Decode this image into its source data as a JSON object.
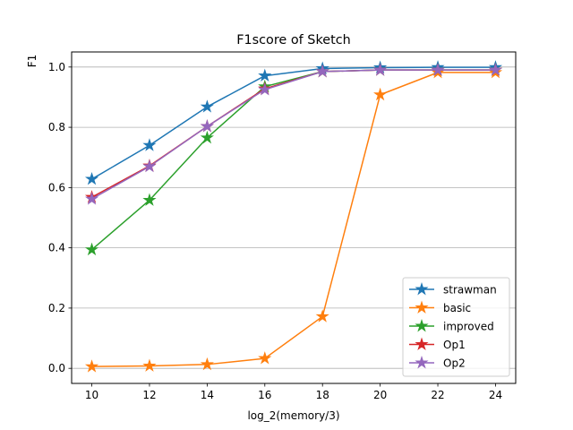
{
  "chart_data": {
    "type": "line",
    "title": "F1score of Sketch",
    "xlabel": "log_2(memory/3)",
    "ylabel": "F1",
    "x": [
      10,
      12,
      14,
      16,
      18,
      20,
      22,
      24
    ],
    "xticks": [
      "10",
      "12",
      "14",
      "16",
      "18",
      "20",
      "22",
      "24"
    ],
    "yticks": [
      "0.0",
      "0.2",
      "0.4",
      "0.6",
      "0.8",
      "1.0"
    ],
    "xlim": [
      9.3,
      24.7
    ],
    "ylim": [
      -0.05,
      1.05
    ],
    "grid": "y-major",
    "legend_position": "lower-right",
    "marker": "star",
    "series": [
      {
        "name": "strawman",
        "color": "#1f77b4",
        "values": [
          0.628,
          0.74,
          0.868,
          0.971,
          0.995,
          0.998,
          0.999,
          0.999
        ]
      },
      {
        "name": "basic",
        "color": "#ff7f0e",
        "values": [
          0.006,
          0.008,
          0.013,
          0.033,
          0.172,
          0.908,
          0.982,
          0.982
        ]
      },
      {
        "name": "improved",
        "color": "#2ca02c",
        "values": [
          0.394,
          0.558,
          0.765,
          0.935,
          0.985,
          0.99,
          0.99,
          0.99
        ]
      },
      {
        "name": "Op1",
        "color": "#d62728",
        "values": [
          0.568,
          0.672,
          0.803,
          0.928,
          0.985,
          0.99,
          0.99,
          0.99
        ]
      },
      {
        "name": "Op2",
        "color": "#9467bd",
        "values": [
          0.562,
          0.67,
          0.803,
          0.925,
          0.985,
          0.99,
          0.99,
          0.99
        ]
      }
    ]
  }
}
